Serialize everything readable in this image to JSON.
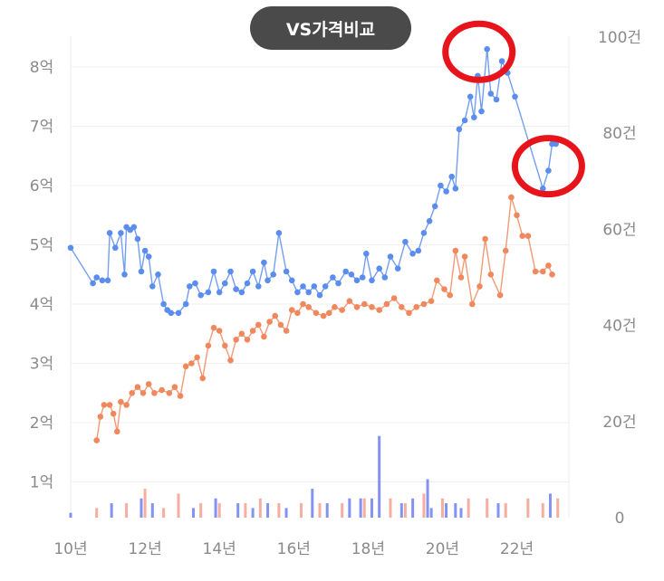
{
  "compare_button": {
    "label": "VS가격비교"
  },
  "chart_data": {
    "type": "line",
    "title": "",
    "x_tick_labels": [
      "10년",
      "12년",
      "14년",
      "16년",
      "18년",
      "20년",
      "22년"
    ],
    "y_left_tick_labels": [
      "1억",
      "2억",
      "3억",
      "4억",
      "5억",
      "6억",
      "7억",
      "8억"
    ],
    "y_right_tick_labels": [
      "0",
      "20건",
      "40건",
      "60건",
      "80건",
      "100건"
    ],
    "ylim_left_eok": [
      0.4,
      8.5
    ],
    "ylim_right_count": [
      0,
      100
    ],
    "xlim_year": [
      2010,
      2023.4
    ],
    "colors": {
      "series_a": "#5b8def",
      "series_b": "#f0885e",
      "bars_a": "#6f7ff0",
      "bars_b": "#f4a090",
      "highlight": "#e8141c"
    },
    "series": [
      {
        "values_eok_by_year": [
          [
            2010.0,
            4.95
          ],
          [
            2010.6,
            4.35
          ],
          [
            2010.7,
            4.45
          ],
          [
            2010.85,
            4.4
          ],
          [
            2011.0,
            4.4
          ],
          [
            2011.05,
            5.2
          ],
          [
            2011.2,
            4.95
          ],
          [
            2011.35,
            5.2
          ],
          [
            2011.45,
            4.5
          ],
          [
            2011.5,
            5.3
          ],
          [
            2011.6,
            5.25
          ],
          [
            2011.7,
            5.3
          ],
          [
            2011.8,
            5.1
          ],
          [
            2011.9,
            4.55
          ],
          [
            2012.0,
            4.9
          ],
          [
            2012.1,
            4.8
          ],
          [
            2012.2,
            4.3
          ],
          [
            2012.35,
            4.5
          ],
          [
            2012.5,
            4.0
          ],
          [
            2012.6,
            3.9
          ],
          [
            2012.7,
            3.85
          ],
          [
            2012.9,
            3.85
          ],
          [
            2013.1,
            4.0
          ],
          [
            2013.2,
            4.3
          ],
          [
            2013.35,
            4.35
          ],
          [
            2013.5,
            4.15
          ],
          [
            2013.7,
            4.2
          ],
          [
            2013.85,
            4.55
          ],
          [
            2014.0,
            4.2
          ],
          [
            2014.15,
            4.35
          ],
          [
            2014.3,
            4.55
          ],
          [
            2014.45,
            4.25
          ],
          [
            2014.6,
            4.2
          ],
          [
            2014.75,
            4.35
          ],
          [
            2014.9,
            4.55
          ],
          [
            2015.05,
            4.3
          ],
          [
            2015.2,
            4.7
          ],
          [
            2015.3,
            4.4
          ],
          [
            2015.45,
            4.5
          ],
          [
            2015.6,
            5.2
          ],
          [
            2015.8,
            4.55
          ],
          [
            2015.95,
            4.4
          ],
          [
            2016.1,
            4.2
          ],
          [
            2016.25,
            4.3
          ],
          [
            2016.4,
            4.2
          ],
          [
            2016.55,
            4.3
          ],
          [
            2016.7,
            4.15
          ],
          [
            2016.85,
            4.3
          ],
          [
            2017.05,
            4.45
          ],
          [
            2017.2,
            4.35
          ],
          [
            2017.4,
            4.55
          ],
          [
            2017.55,
            4.5
          ],
          [
            2017.7,
            4.4
          ],
          [
            2017.85,
            4.45
          ],
          [
            2017.95,
            4.85
          ],
          [
            2018.1,
            4.4
          ],
          [
            2018.3,
            4.6
          ],
          [
            2018.45,
            4.45
          ],
          [
            2018.6,
            4.8
          ],
          [
            2018.8,
            4.6
          ],
          [
            2019.0,
            5.05
          ],
          [
            2019.2,
            4.85
          ],
          [
            2019.35,
            4.9
          ],
          [
            2019.5,
            5.2
          ],
          [
            2019.65,
            5.4
          ],
          [
            2019.8,
            5.65
          ],
          [
            2019.95,
            6.0
          ],
          [
            2020.1,
            5.9
          ],
          [
            2020.25,
            6.15
          ],
          [
            2020.35,
            5.95
          ],
          [
            2020.45,
            6.95
          ],
          [
            2020.6,
            7.1
          ],
          [
            2020.75,
            7.5
          ],
          [
            2020.85,
            7.15
          ],
          [
            2020.95,
            7.85
          ],
          [
            2021.05,
            7.25
          ],
          [
            2021.2,
            8.3
          ],
          [
            2021.3,
            7.55
          ],
          [
            2021.45,
            7.45
          ],
          [
            2021.6,
            8.1
          ],
          [
            2021.75,
            7.9
          ],
          [
            2021.95,
            7.5
          ],
          [
            2022.7,
            5.95
          ],
          [
            2022.85,
            6.25
          ],
          [
            2022.95,
            6.7
          ],
          [
            2023.05,
            6.7
          ]
        ]
      },
      {
        "values_eok_by_year": [
          [
            2010.7,
            1.7
          ],
          [
            2010.8,
            2.1
          ],
          [
            2010.9,
            2.3
          ],
          [
            2011.05,
            2.3
          ],
          [
            2011.15,
            2.15
          ],
          [
            2011.25,
            1.85
          ],
          [
            2011.35,
            2.35
          ],
          [
            2011.5,
            2.3
          ],
          [
            2011.65,
            2.5
          ],
          [
            2011.8,
            2.6
          ],
          [
            2011.95,
            2.5
          ],
          [
            2012.1,
            2.65
          ],
          [
            2012.25,
            2.5
          ],
          [
            2012.45,
            2.55
          ],
          [
            2012.65,
            2.5
          ],
          [
            2012.8,
            2.6
          ],
          [
            2012.95,
            2.45
          ],
          [
            2013.1,
            2.95
          ],
          [
            2013.25,
            3.0
          ],
          [
            2013.4,
            3.1
          ],
          [
            2013.55,
            2.75
          ],
          [
            2013.7,
            3.3
          ],
          [
            2013.85,
            3.6
          ],
          [
            2014.0,
            3.55
          ],
          [
            2014.15,
            3.3
          ],
          [
            2014.3,
            3.05
          ],
          [
            2014.45,
            3.4
          ],
          [
            2014.6,
            3.5
          ],
          [
            2014.75,
            3.4
          ],
          [
            2014.9,
            3.55
          ],
          [
            2015.05,
            3.65
          ],
          [
            2015.2,
            3.45
          ],
          [
            2015.35,
            3.7
          ],
          [
            2015.5,
            3.8
          ],
          [
            2015.65,
            3.65
          ],
          [
            2015.8,
            3.55
          ],
          [
            2015.95,
            3.9
          ],
          [
            2016.1,
            3.85
          ],
          [
            2016.25,
            4.0
          ],
          [
            2016.4,
            3.95
          ],
          [
            2016.6,
            3.85
          ],
          [
            2016.8,
            3.8
          ],
          [
            2016.95,
            3.85
          ],
          [
            2017.1,
            3.95
          ],
          [
            2017.3,
            3.9
          ],
          [
            2017.5,
            4.05
          ],
          [
            2017.7,
            3.95
          ],
          [
            2017.9,
            4.0
          ],
          [
            2018.1,
            3.95
          ],
          [
            2018.3,
            3.9
          ],
          [
            2018.5,
            4.0
          ],
          [
            2018.7,
            4.1
          ],
          [
            2018.9,
            3.95
          ],
          [
            2019.1,
            3.85
          ],
          [
            2019.3,
            3.95
          ],
          [
            2019.5,
            4.0
          ],
          [
            2019.7,
            4.05
          ],
          [
            2019.85,
            4.4
          ],
          [
            2020.05,
            4.25
          ],
          [
            2020.2,
            4.15
          ],
          [
            2020.35,
            4.9
          ],
          [
            2020.5,
            4.45
          ],
          [
            2020.6,
            4.8
          ],
          [
            2020.8,
            4.0
          ],
          [
            2021.0,
            4.3
          ],
          [
            2021.15,
            5.1
          ],
          [
            2021.3,
            4.5
          ],
          [
            2021.55,
            4.15
          ],
          [
            2021.7,
            4.9
          ],
          [
            2021.85,
            5.8
          ],
          [
            2022.0,
            5.5
          ],
          [
            2022.15,
            5.15
          ],
          [
            2022.3,
            5.15
          ],
          [
            2022.5,
            4.55
          ],
          [
            2022.7,
            4.55
          ],
          [
            2022.85,
            4.65
          ],
          [
            2022.95,
            4.5
          ]
        ]
      }
    ],
    "bars_count_by_year": {
      "series_a": [
        [
          2010.0,
          1
        ],
        [
          2011.1,
          3
        ],
        [
          2011.9,
          4
        ],
        [
          2012.2,
          3
        ],
        [
          2013.3,
          2
        ],
        [
          2013.9,
          4
        ],
        [
          2014.5,
          3
        ],
        [
          2014.9,
          2
        ],
        [
          2015.3,
          3
        ],
        [
          2015.8,
          2
        ],
        [
          2016.5,
          6
        ],
        [
          2016.9,
          3
        ],
        [
          2017.5,
          4
        ],
        [
          2017.8,
          4
        ],
        [
          2018.1,
          4
        ],
        [
          2018.3,
          17
        ],
        [
          2018.9,
          3
        ],
        [
          2019.2,
          4
        ],
        [
          2019.6,
          8
        ],
        [
          2019.7,
          2
        ],
        [
          2020.1,
          3
        ],
        [
          2020.35,
          3
        ],
        [
          2020.5,
          2
        ],
        [
          2021.5,
          3
        ],
        [
          2022.9,
          5
        ]
      ],
      "series_b": [
        [
          2010.7,
          2
        ],
        [
          2011.5,
          3
        ],
        [
          2012.0,
          6
        ],
        [
          2012.5,
          2
        ],
        [
          2012.9,
          5
        ],
        [
          2013.5,
          3
        ],
        [
          2014.0,
          3
        ],
        [
          2014.7,
          3
        ],
        [
          2015.1,
          4
        ],
        [
          2015.6,
          3
        ],
        [
          2016.2,
          3
        ],
        [
          2016.7,
          3
        ],
        [
          2017.3,
          3
        ],
        [
          2017.9,
          4
        ],
        [
          2018.6,
          4
        ],
        [
          2019.0,
          3
        ],
        [
          2019.5,
          5
        ],
        [
          2020.0,
          4
        ],
        [
          2020.7,
          4
        ],
        [
          2021.2,
          4
        ],
        [
          2021.7,
          3
        ],
        [
          2022.3,
          4
        ],
        [
          2022.7,
          3
        ],
        [
          2023.1,
          4
        ]
      ]
    },
    "highlighted_points": [
      {
        "year": 2021.2,
        "value_eok": 8.3
      },
      {
        "year": 2022.8,
        "value_eok": 6.25
      }
    ],
    "grid": true
  }
}
